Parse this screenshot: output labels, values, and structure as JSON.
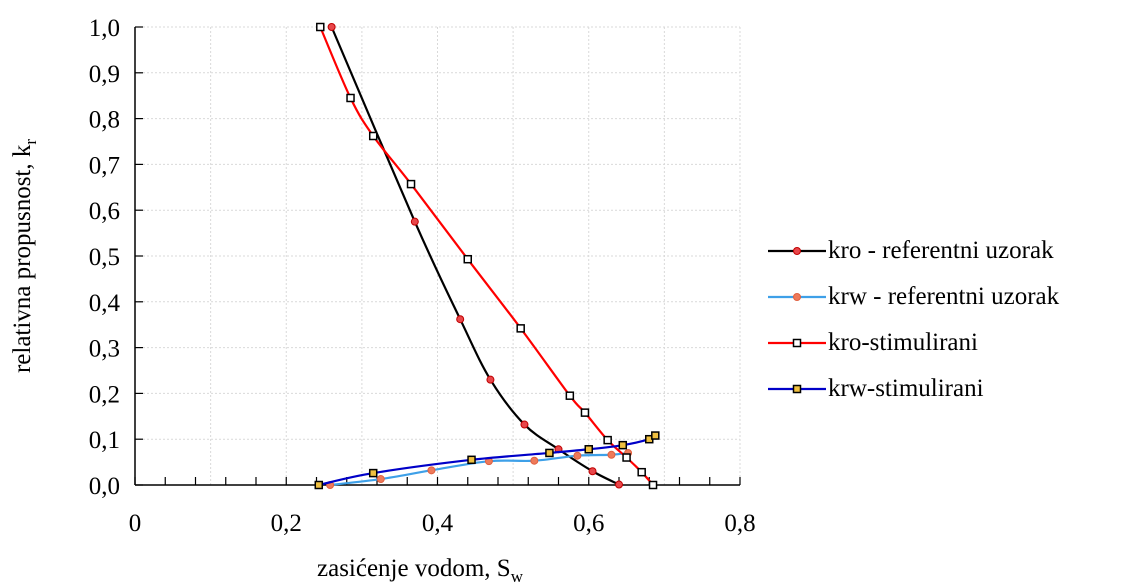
{
  "chart_data": {
    "type": "line",
    "xlabel": "zasićenje vodom, S",
    "xlabel_sub": "w",
    "ylabel": "relativna propusnost, k",
    "ylabel_sub": "r",
    "xlim": [
      0,
      0.8
    ],
    "ylim": [
      0,
      1.0
    ],
    "x_ticks": [
      0,
      0.2,
      0.4,
      0.6,
      0.8
    ],
    "x_tick_labels": [
      "0",
      "0,2",
      "0,4",
      "0,6",
      "0,8"
    ],
    "y_ticks": [
      0,
      0.1,
      0.2,
      0.3,
      0.4,
      0.5,
      0.6,
      0.7,
      0.8,
      0.9,
      1.0
    ],
    "y_tick_labels": [
      "0,0",
      "0,1",
      "0,2",
      "0,3",
      "0,4",
      "0,5",
      "0,6",
      "0,7",
      "0,8",
      "0,9",
      "1,0"
    ],
    "grid": true,
    "legend_position": "right",
    "series": [
      {
        "name": "kro - referentni uzorak",
        "line_color": "#000000",
        "marker": "circle",
        "marker_fill": "#e8464a",
        "marker_stroke": "#c00000",
        "points": [
          [
            0.26,
            1.0
          ],
          [
            0.37,
            0.575
          ],
          [
            0.43,
            0.362
          ],
          [
            0.47,
            0.23
          ],
          [
            0.515,
            0.132
          ],
          [
            0.56,
            0.078
          ],
          [
            0.605,
            0.03
          ],
          [
            0.64,
            0.001
          ]
        ]
      },
      {
        "name": "krw - referentni uzorak",
        "line_color": "#3ea0e8",
        "marker": "circle",
        "marker_fill": "#ee7a5a",
        "marker_stroke": "#e06040",
        "points": [
          [
            0.258,
            0.0
          ],
          [
            0.325,
            0.013
          ],
          [
            0.392,
            0.032
          ],
          [
            0.468,
            0.052
          ],
          [
            0.528,
            0.053
          ],
          [
            0.585,
            0.064
          ],
          [
            0.63,
            0.066
          ],
          [
            0.652,
            0.07
          ]
        ]
      },
      {
        "name": "kro-stimulirani",
        "line_color": "#ff0000",
        "marker": "square",
        "marker_fill": "#ffffff",
        "marker_stroke": "#000000",
        "points": [
          [
            0.245,
            1.0
          ],
          [
            0.285,
            0.845
          ],
          [
            0.315,
            0.762
          ],
          [
            0.365,
            0.657
          ],
          [
            0.44,
            0.493
          ],
          [
            0.51,
            0.342
          ],
          [
            0.575,
            0.195
          ],
          [
            0.595,
            0.158
          ],
          [
            0.625,
            0.098
          ],
          [
            0.65,
            0.06
          ],
          [
            0.67,
            0.028
          ],
          [
            0.685,
            0.0
          ]
        ]
      },
      {
        "name": "krw-stimulirani",
        "line_color": "#0000c8",
        "marker": "square",
        "marker_fill": "#f0c040",
        "marker_stroke": "#000000",
        "points": [
          [
            0.243,
            0.0
          ],
          [
            0.315,
            0.026
          ],
          [
            0.445,
            0.055
          ],
          [
            0.548,
            0.07
          ],
          [
            0.6,
            0.078
          ],
          [
            0.645,
            0.087
          ],
          [
            0.68,
            0.1
          ],
          [
            0.688,
            0.108
          ]
        ]
      }
    ]
  }
}
